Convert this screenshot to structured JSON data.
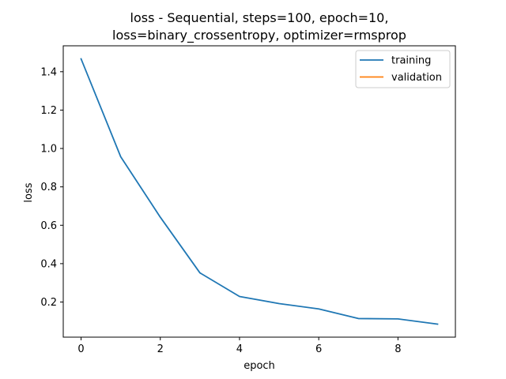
{
  "chart_data": {
    "type": "line",
    "title_line1": "loss - Sequential, steps=100, epoch=10,",
    "title_line2": "loss=binary_crossentropy, optimizer=rmsprop",
    "xlabel": "epoch",
    "ylabel": "loss",
    "xlim": [
      -0.45,
      9.45
    ],
    "ylim": [
      0.017,
      1.535
    ],
    "x_ticks": [
      0,
      2,
      4,
      6,
      8
    ],
    "y_ticks": [
      0.2,
      0.4,
      0.6,
      0.8,
      1.0,
      1.2,
      1.4
    ],
    "x_tick_labels": [
      "0",
      "2",
      "4",
      "6",
      "8"
    ],
    "y_tick_labels": [
      "0.2",
      "0.4",
      "0.6",
      "0.8",
      "1.0",
      "1.2",
      "1.4"
    ],
    "grid": false,
    "legend_position": "top-right",
    "series": [
      {
        "name": "training",
        "color": "#1f77b4",
        "x": [
          0,
          1,
          2,
          3,
          4,
          5,
          6,
          7,
          8,
          9
        ],
        "values": [
          1.467,
          0.957,
          0.642,
          0.352,
          0.229,
          0.192,
          0.164,
          0.114,
          0.112,
          0.085
        ]
      },
      {
        "name": "validation",
        "color": "#ff7f0e",
        "x": [],
        "values": []
      }
    ]
  }
}
